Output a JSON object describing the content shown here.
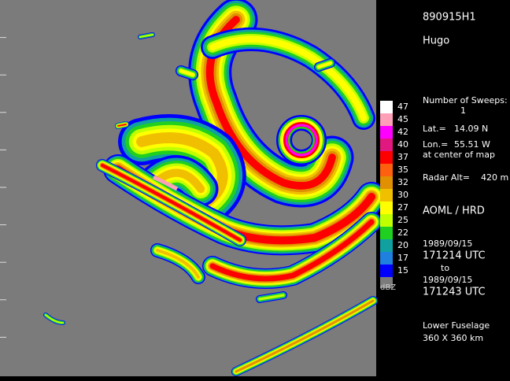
{
  "header": {
    "flight_id": "890915H1",
    "storm_name": "Hugo"
  },
  "info": {
    "sweeps_label": "Number of Sweeps:",
    "sweeps_value": "1",
    "lat_label": "Lat.=",
    "lat_value": "14.09 N",
    "lon_label": "Lon.=",
    "lon_value": "55.51 W",
    "center_note": "at center of map",
    "alt_label": "Radar Alt=",
    "alt_value": "420 m",
    "agency": "AOML / HRD",
    "start_date": "1989/09/15",
    "start_time": "171214 UTC",
    "to": "to",
    "end_date": "1989/09/15",
    "end_time": "171243 UTC",
    "radar": "Lower Fuselage",
    "domain": "360 X 360 km"
  },
  "legend": {
    "unit": "dBZ",
    "entries": [
      {
        "label": "47",
        "color": "#ffffff"
      },
      {
        "label": "45",
        "color": "#ffa0b8"
      },
      {
        "label": "42",
        "color": "#ff00ff"
      },
      {
        "label": "40",
        "color": "#e01880"
      },
      {
        "label": "37",
        "color": "#ff0000"
      },
      {
        "label": "35",
        "color": "#ff6010"
      },
      {
        "label": "32",
        "color": "#e09000"
      },
      {
        "label": "30",
        "color": "#f0c000"
      },
      {
        "label": "27",
        "color": "#ffff00"
      },
      {
        "label": "25",
        "color": "#c0ff00"
      },
      {
        "label": "22",
        "color": "#20d020"
      },
      {
        "label": "20",
        "color": "#10a0a0"
      },
      {
        "label": "17",
        "color": "#2080e0"
      },
      {
        "label": "15",
        "color": "#0000ff"
      }
    ]
  }
}
